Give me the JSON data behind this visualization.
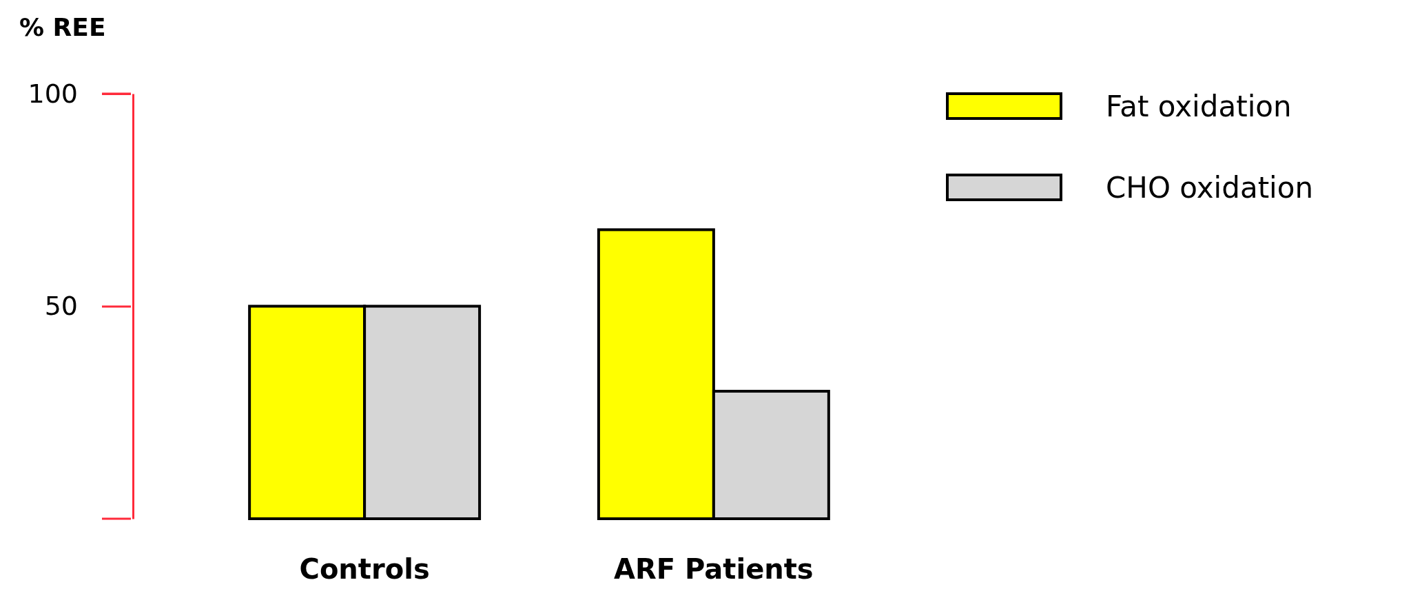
{
  "chart_data": {
    "type": "bar",
    "ylabel": "% REE",
    "categories": [
      "Controls",
      "ARF Patients"
    ],
    "series": [
      {
        "name": "Fat oxidation",
        "color": "#ffff00",
        "values": [
          50,
          68
        ]
      },
      {
        "name": "CHO oxidation",
        "color": "#d6d6d6",
        "values": [
          50,
          30
        ]
      }
    ],
    "ylim": [
      0,
      100
    ],
    "yticks": [
      50,
      100
    ],
    "grid": false,
    "legend": "top right"
  }
}
